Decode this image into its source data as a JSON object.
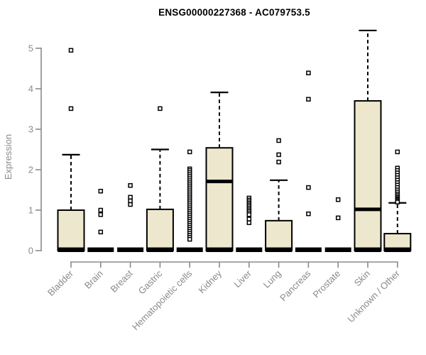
{
  "colors": {
    "box_fill": "#EDE7CD",
    "box_stroke": "#000000",
    "axis": "#8A8A8A",
    "tick_label": "#8A8A8A",
    "title": "#000000",
    "background": "#FFFFFF"
  },
  "chart_data": {
    "type": "box",
    "title": "ENSG00000227368 - AC079753.5",
    "xlabel": "",
    "ylabel": "Expression",
    "ylim": [
      0,
      5
    ],
    "yticks": [
      0,
      1,
      2,
      3,
      4,
      5
    ],
    "grid": false,
    "legend": false,
    "categories": [
      "Bladder",
      "Brain",
      "Breast",
      "Gastric",
      "Hematopoietic cells",
      "Kidney",
      "Liver",
      "Lung",
      "Pancreas",
      "Prostate",
      "Skin",
      "Unknown / Other"
    ],
    "boxes": [
      {
        "category": "Bladder",
        "whisker_low": 0,
        "q1": 0,
        "median": 0,
        "q3": 1.0,
        "whisker_high": 2.37,
        "outliers": [
          4.95,
          3.51
        ]
      },
      {
        "category": "Brain",
        "whisker_low": 0,
        "q1": 0,
        "median": 0,
        "q3": 0,
        "whisker_high": 0,
        "outliers": [
          1.47,
          1.0,
          0.89,
          0.46
        ]
      },
      {
        "category": "Breast",
        "whisker_low": 0,
        "q1": 0,
        "median": 0,
        "q3": 0,
        "whisker_high": 0,
        "outliers": [
          1.61,
          1.32,
          1.23,
          1.14
        ]
      },
      {
        "category": "Gastric",
        "whisker_low": 0,
        "q1": 0,
        "median": 0,
        "q3": 1.02,
        "whisker_high": 2.5,
        "outliers": [
          3.51
        ]
      },
      {
        "category": "Hematopoietic cells",
        "whisker_low": 0,
        "q1": 0,
        "median": 0,
        "q3": 0,
        "whisker_high": 0,
        "outliers": [
          2.44,
          2.02,
          1.98,
          1.93,
          1.88,
          1.83,
          1.78,
          1.73,
          1.68,
          1.63,
          1.58,
          1.53,
          1.48,
          1.43,
          1.38,
          1.33,
          1.28,
          1.23,
          1.18,
          1.13,
          1.08,
          1.03,
          0.98,
          0.93,
          0.88,
          0.83,
          0.78,
          0.73,
          0.68,
          0.63,
          0.58,
          0.53,
          0.48,
          0.43,
          0.38,
          0.33,
          0.28
        ]
      },
      {
        "category": "Kidney",
        "whisker_low": 0,
        "q1": 0,
        "median": 1.71,
        "q3": 2.54,
        "whisker_high": 3.91,
        "outliers": []
      },
      {
        "category": "Liver",
        "whisker_low": 0,
        "q1": 0,
        "median": 0,
        "q3": 0,
        "whisker_high": 0,
        "outliers": [
          1.3,
          1.25,
          1.21,
          1.17,
          1.13,
          1.09,
          1.05,
          1.01,
          0.97,
          0.93,
          0.89,
          0.78,
          0.69
        ]
      },
      {
        "category": "Lung",
        "whisker_low": 0,
        "q1": 0,
        "median": 0,
        "q3": 0.74,
        "whisker_high": 1.74,
        "outliers": [
          2.72,
          2.37,
          2.19
        ]
      },
      {
        "category": "Pancreas",
        "whisker_low": 0,
        "q1": 0,
        "median": 0,
        "q3": 0,
        "whisker_high": 0,
        "outliers": [
          4.39,
          3.74,
          1.56,
          0.91
        ]
      },
      {
        "category": "Prostate",
        "whisker_low": 0,
        "q1": 0,
        "median": 0,
        "q3": 0,
        "whisker_high": 0,
        "outliers": [
          1.26,
          0.81
        ]
      },
      {
        "category": "Skin",
        "whisker_low": 0,
        "q1": 0,
        "median": 1.02,
        "q3": 3.7,
        "whisker_high": 5.44,
        "outliers": []
      },
      {
        "category": "Unknown / Other",
        "whisker_low": 0,
        "q1": 0,
        "median": 0,
        "q3": 0.42,
        "whisker_high": 1.18,
        "outliers": [
          2.44,
          2.04,
          1.98,
          1.92,
          1.86,
          1.8,
          1.74,
          1.68,
          1.62,
          1.56,
          1.5,
          1.45,
          1.4,
          1.36,
          1.32,
          1.29,
          1.26,
          1.23,
          1.2
        ]
      }
    ]
  }
}
